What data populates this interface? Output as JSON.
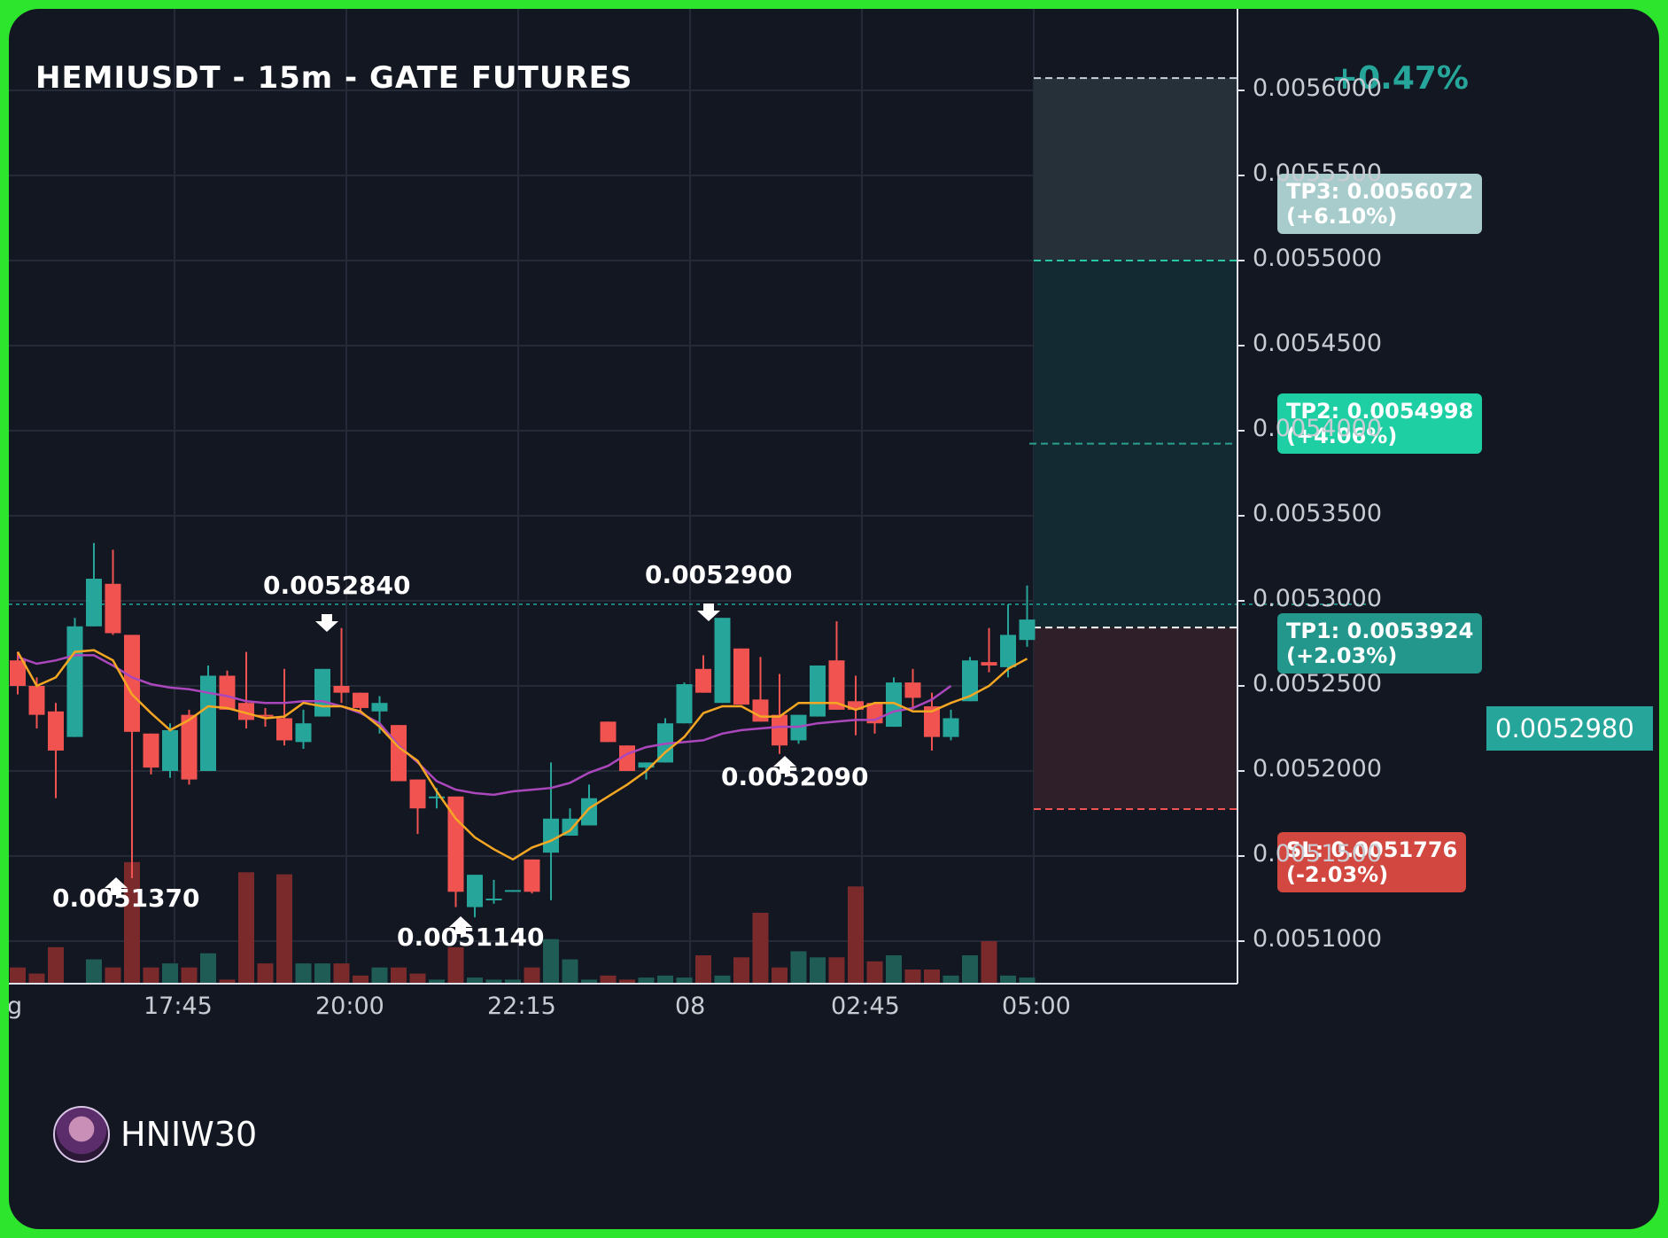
{
  "title": "HEMIUSDT - 15m - GATE FUTURES",
  "change_badge": "+0.47%",
  "author": "HNIW30",
  "colors": {
    "bull": "#26a69a",
    "bear": "#f05350",
    "ema_fast": "#f5a623",
    "ema_slow": "#ab47bc",
    "background": "#131722"
  },
  "current_price": "0.0052980",
  "targets": {
    "tp3": {
      "label": "TP3: 0.0056072",
      "pct": "(+6.10%)"
    },
    "tp2": {
      "label": "TP2: 0.0054998",
      "pct": "(+4.06%)"
    },
    "tp1": {
      "label": "TP1: 0.0053924",
      "pct": "(+2.03%)"
    },
    "sl": {
      "label": "SL: 0.0051776",
      "pct": "(-2.03%)"
    }
  },
  "annotations": [
    {
      "label": "0.0051370",
      "type": "low",
      "price": 0.005137
    },
    {
      "label": "0.0052840",
      "type": "high",
      "price": 0.005284
    },
    {
      "label": "0.0051140",
      "type": "low",
      "price": 0.005114
    },
    {
      "label": "0.0052900",
      "type": "high",
      "price": 0.00529
    },
    {
      "label": "0.0052090",
      "type": "low",
      "price": 0.005209
    }
  ],
  "chart_data": {
    "type": "candlestick",
    "y_ticks": [
      "0.0056000",
      "0.0055500",
      "0.0055000",
      "0.0054500",
      "0.0054000",
      "0.0053500",
      "0.0053000",
      "0.0052500",
      "0.0052000",
      "0.0051500",
      "0.0051000"
    ],
    "x_ticks": [
      "g",
      "17:45",
      "20:00",
      "22:15",
      "08",
      "02:45",
      "05:00"
    ],
    "ylim": [
      0.00507,
      0.00565
    ],
    "levels": {
      "entry": 0.0052843,
      "tp1": 0.0053924,
      "tp2": 0.0054998,
      "tp3": 0.0056072,
      "sl": 0.0051776,
      "current": 0.005298
    },
    "candles": [
      [
        0.005265,
        0.00525,
        0.00527,
        0.005245
      ],
      [
        0.00525,
        0.005233,
        0.005255,
        0.005225
      ],
      [
        0.005235,
        0.005212,
        0.00524,
        0.005184
      ],
      [
        0.00522,
        0.005285,
        0.00529,
        0.00522
      ],
      [
        0.005285,
        0.005313,
        0.005334,
        0.005285
      ],
      [
        0.00531,
        0.005281,
        0.00533,
        0.00528
      ],
      [
        0.00528,
        0.005223,
        0.00528,
        0.005137
      ],
      [
        0.005222,
        0.005202,
        0.005222,
        0.005198
      ],
      [
        0.0052,
        0.005224,
        0.005228,
        0.005196
      ],
      [
        0.005233,
        0.005195,
        0.005236,
        0.005192
      ],
      [
        0.0052,
        0.005256,
        0.005262,
        0.0052
      ],
      [
        0.005256,
        0.005236,
        0.005259,
        0.005236
      ],
      [
        0.00524,
        0.00523,
        0.00527,
        0.005225
      ],
      [
        0.005233,
        0.005232,
        0.005237,
        0.005226
      ],
      [
        0.005231,
        0.005218,
        0.00526,
        0.005215
      ],
      [
        0.005217,
        0.005228,
        0.005236,
        0.005213
      ],
      [
        0.005232,
        0.00526,
        0.00526,
        0.005232
      ],
      [
        0.00525,
        0.005246,
        0.005284,
        0.00524
      ],
      [
        0.005246,
        0.005237,
        0.005246,
        0.005235
      ],
      [
        0.005235,
        0.00524,
        0.005244,
        0.005222
      ],
      [
        0.005227,
        0.005194,
        0.005227,
        0.005194
      ],
      [
        0.005195,
        0.005178,
        0.005195,
        0.005163
      ],
      [
        0.005185,
        0.005185,
        0.00519,
        0.005178
      ],
      [
        0.005185,
        0.005129,
        0.005185,
        0.00512
      ],
      [
        0.00512,
        0.005139,
        0.005139,
        0.005114
      ],
      [
        0.005124,
        0.005125,
        0.005136,
        0.005122
      ],
      [
        0.005129,
        0.00513,
        0.00513,
        0.005129
      ],
      [
        0.005148,
        0.005129,
        0.005148,
        0.005128
      ],
      [
        0.005152,
        0.005172,
        0.005205,
        0.005124
      ],
      [
        0.005162,
        0.005172,
        0.005178,
        0.005162
      ],
      [
        0.005168,
        0.005184,
        0.005192,
        0.005168
      ],
      [
        0.005229,
        0.005217,
        0.005229,
        0.005217
      ],
      [
        0.005215,
        0.0052,
        0.005215,
        0.0052
      ],
      [
        0.005202,
        0.005205,
        0.005205,
        0.005195
      ],
      [
        0.005205,
        0.005228,
        0.005231,
        0.005205
      ],
      [
        0.005228,
        0.005251,
        0.005252,
        0.005228
      ],
      [
        0.00526,
        0.005246,
        0.005268,
        0.005246
      ],
      [
        0.00524,
        0.00529,
        0.00529,
        0.00524
      ],
      [
        0.005272,
        0.005239,
        0.005272,
        0.005239
      ],
      [
        0.005242,
        0.005229,
        0.005267,
        0.005229
      ],
      [
        0.005233,
        0.005215,
        0.005257,
        0.00521
      ],
      [
        0.005218,
        0.005233,
        0.005233,
        0.005216
      ],
      [
        0.005232,
        0.005262,
        0.005262,
        0.005232
      ],
      [
        0.005265,
        0.005236,
        0.005288,
        0.005236
      ],
      [
        0.005241,
        0.005236,
        0.005256,
        0.005221
      ],
      [
        0.00524,
        0.005228,
        0.00524,
        0.005222
      ],
      [
        0.005226,
        0.005252,
        0.005255,
        0.005226
      ],
      [
        0.005252,
        0.005243,
        0.00526,
        0.005236
      ],
      [
        0.005238,
        0.00522,
        0.005246,
        0.005212
      ],
      [
        0.00522,
        0.005231,
        0.005236,
        0.005218
      ],
      [
        0.005241,
        0.005265,
        0.005267,
        0.005241
      ],
      [
        0.005264,
        0.005262,
        0.005284,
        0.005258
      ],
      [
        0.005261,
        0.00528,
        0.005298,
        0.005255
      ],
      [
        0.005277,
        0.005289,
        0.005309,
        0.005273
      ]
    ],
    "ema_fast": [
      0.00527,
      0.00525,
      0.005255,
      0.00527,
      0.005271,
      0.005265,
      0.005245,
      0.005234,
      0.005224,
      0.00523,
      0.005238,
      0.005237,
      0.005234,
      0.005231,
      0.005232,
      0.00524,
      0.005238,
      0.005238,
      0.005235,
      0.005226,
      0.005214,
      0.005206,
      0.005188,
      0.005172,
      0.005161,
      0.005154,
      0.005148,
      0.005155,
      0.005159,
      0.005165,
      0.005178,
      0.005185,
      0.005192,
      0.0052,
      0.005211,
      0.00522,
      0.005234,
      0.005238,
      0.005238,
      0.005232,
      0.005232,
      0.00524,
      0.00524,
      0.00524,
      0.005236,
      0.00524,
      0.00524,
      0.005235,
      0.005235,
      0.00524,
      0.005244,
      0.00525,
      0.00526,
      0.005266
    ],
    "ema_slow": [
      0.005267,
      0.005263,
      0.005265,
      0.005268,
      0.005268,
      0.005262,
      0.005255,
      0.005251,
      0.005249,
      0.005248,
      0.005246,
      0.005244,
      0.005241,
      0.00524,
      0.00524,
      0.005241,
      0.005241,
      0.005238,
      0.005234,
      0.005228,
      0.005215,
      0.005205,
      0.005194,
      0.005189,
      0.005187,
      0.005186,
      0.005188,
      0.005189,
      0.00519,
      0.005193,
      0.005199,
      0.005203,
      0.00521,
      0.005214,
      0.005216,
      0.005217,
      0.005218,
      0.005222,
      0.005224,
      0.005225,
      0.005226,
      0.005226,
      0.005228,
      0.005229,
      0.00523,
      0.00523,
      0.005235,
      0.005237,
      0.005242,
      0.00525
    ],
    "volume": [
      8,
      5,
      18,
      0,
      12,
      8,
      60,
      8,
      10,
      8,
      15,
      2,
      55,
      10,
      54,
      10,
      10,
      10,
      4,
      8,
      8,
      5,
      2,
      18,
      3,
      2,
      2,
      8,
      22,
      12,
      2,
      4,
      2,
      3,
      4,
      3,
      14,
      4,
      13,
      35,
      8,
      16,
      13,
      13,
      48,
      11,
      14,
      7,
      7,
      4,
      14,
      21,
      4,
      3
    ]
  }
}
